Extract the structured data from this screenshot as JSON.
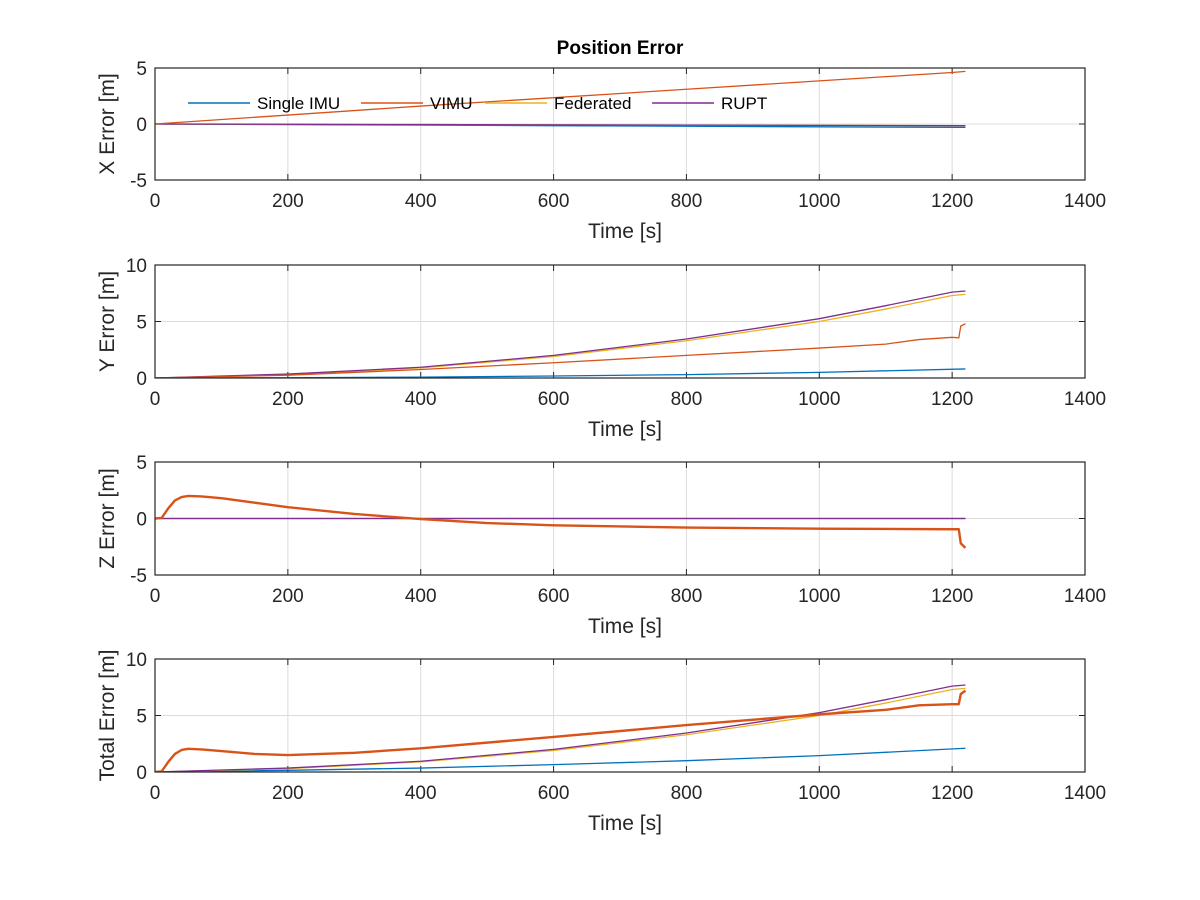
{
  "figure": {
    "title": "Position Error"
  },
  "legend": {
    "placement": "top-left",
    "entries": [
      {
        "name": "Single IMU",
        "color": "#0072BD"
      },
      {
        "name": "VIMU",
        "color": "#D95319"
      },
      {
        "name": "Federated",
        "color": "#EDB120"
      },
      {
        "name": "RUPT",
        "color": "#7E2F8E"
      }
    ]
  },
  "chart_data": [
    {
      "type": "line",
      "title": "Position Error",
      "xlabel": "Time [s]",
      "ylabel": "X Error [m]",
      "xlim": [
        0,
        1400
      ],
      "ylim": [
        -5,
        5
      ],
      "xticks": [
        "0",
        "200",
        "400",
        "600",
        "800",
        "1000",
        "1200",
        "1400"
      ],
      "yticks": [
        "-5",
        "0",
        "5"
      ],
      "grid": true,
      "series": [
        {
          "name": "Single IMU",
          "color": "#0072BD",
          "x": [
            0,
            200,
            400,
            600,
            800,
            1000,
            1220
          ],
          "y": [
            0,
            -0.05,
            -0.1,
            -0.15,
            -0.2,
            -0.25,
            -0.3
          ]
        },
        {
          "name": "VIMU",
          "color": "#D95319",
          "x": [
            0,
            200,
            400,
            600,
            800,
            1000,
            1200,
            1220
          ],
          "y": [
            0,
            0.8,
            1.6,
            2.35,
            3.1,
            3.85,
            4.6,
            4.7
          ]
        },
        {
          "name": "Federated",
          "color": "#EDB120",
          "x": [
            0,
            400,
            800,
            1220
          ],
          "y": [
            0,
            -0.05,
            -0.1,
            -0.15
          ]
        },
        {
          "name": "RUPT",
          "color": "#7E2F8E",
          "x": [
            0,
            400,
            800,
            1220
          ],
          "y": [
            0,
            -0.05,
            -0.1,
            -0.15
          ]
        }
      ]
    },
    {
      "type": "line",
      "xlabel": "Time [s]",
      "ylabel": "Y Error [m]",
      "xlim": [
        0,
        1400
      ],
      "ylim": [
        0,
        10
      ],
      "xticks": [
        "0",
        "200",
        "400",
        "600",
        "800",
        "1000",
        "1200",
        "1400"
      ],
      "yticks": [
        "0",
        "5",
        "10"
      ],
      "grid": true,
      "series": [
        {
          "name": "Single IMU",
          "color": "#0072BD",
          "x": [
            0,
            200,
            400,
            600,
            800,
            1000,
            1220
          ],
          "y": [
            0,
            0.02,
            0.08,
            0.18,
            0.3,
            0.5,
            0.8
          ]
        },
        {
          "name": "VIMU",
          "color": "#D95319",
          "x": [
            0,
            200,
            400,
            600,
            800,
            1000,
            1100,
            1150,
            1200,
            1210,
            1213,
            1220
          ],
          "y": [
            0,
            0.25,
            0.75,
            1.35,
            2.0,
            2.65,
            3.0,
            3.4,
            3.6,
            3.55,
            4.6,
            4.8
          ]
        },
        {
          "name": "Federated",
          "color": "#EDB120",
          "x": [
            0,
            200,
            400,
            600,
            800,
            1000,
            1100,
            1200,
            1220
          ],
          "y": [
            0,
            0.3,
            0.9,
            1.9,
            3.3,
            5.0,
            6.1,
            7.3,
            7.4
          ]
        },
        {
          "name": "RUPT",
          "color": "#7E2F8E",
          "x": [
            0,
            200,
            400,
            600,
            800,
            1000,
            1100,
            1200,
            1220
          ],
          "y": [
            0,
            0.35,
            0.95,
            2.0,
            3.45,
            5.25,
            6.4,
            7.6,
            7.7
          ]
        }
      ]
    },
    {
      "type": "line",
      "xlabel": "Time [s]",
      "ylabel": "Z Error [m]",
      "xlim": [
        0,
        1400
      ],
      "ylim": [
        -5,
        5
      ],
      "xticks": [
        "0",
        "200",
        "400",
        "600",
        "800",
        "1000",
        "1200",
        "1400"
      ],
      "yticks": [
        "-5",
        "0",
        "5"
      ],
      "grid": true,
      "series": [
        {
          "name": "Single IMU",
          "color": "#0072BD",
          "x": [
            0,
            400,
            800,
            1220
          ],
          "y": [
            0,
            0,
            0,
            0
          ]
        },
        {
          "name": "VIMU",
          "color": "#D95319",
          "x": [
            0,
            10,
            20,
            30,
            40,
            50,
            70,
            100,
            150,
            200,
            300,
            400,
            500,
            600,
            800,
            1000,
            1200,
            1210,
            1213,
            1220
          ],
          "y": [
            0,
            0.05,
            0.9,
            1.6,
            1.9,
            2.0,
            1.95,
            1.8,
            1.4,
            1.0,
            0.4,
            -0.05,
            -0.4,
            -0.6,
            -0.8,
            -0.9,
            -0.95,
            -0.95,
            -2.2,
            -2.6
          ]
        },
        {
          "name": "Federated",
          "color": "#EDB120",
          "x": [
            0,
            400,
            800,
            1220
          ],
          "y": [
            0,
            0,
            0,
            0
          ]
        },
        {
          "name": "RUPT",
          "color": "#7E2F8E",
          "x": [
            0,
            400,
            800,
            1220
          ],
          "y": [
            0,
            0,
            0,
            0
          ]
        }
      ]
    },
    {
      "type": "line",
      "xlabel": "Time [s]",
      "ylabel": "Total Error [m]",
      "xlim": [
        0,
        1400
      ],
      "ylim": [
        0,
        10
      ],
      "xticks": [
        "0",
        "200",
        "400",
        "600",
        "800",
        "1000",
        "1200",
        "1400"
      ],
      "yticks": [
        "0",
        "5",
        "10"
      ],
      "grid": true,
      "series": [
        {
          "name": "Single IMU",
          "color": "#0072BD",
          "x": [
            0,
            200,
            400,
            600,
            800,
            1000,
            1220
          ],
          "y": [
            0,
            0.15,
            0.35,
            0.65,
            1.0,
            1.45,
            2.1
          ]
        },
        {
          "name": "VIMU",
          "color": "#D95319",
          "x": [
            0,
            10,
            20,
            30,
            40,
            50,
            70,
            100,
            150,
            200,
            300,
            400,
            600,
            800,
            1000,
            1100,
            1150,
            1200,
            1210,
            1213,
            1220
          ],
          "y": [
            0,
            0.05,
            0.9,
            1.6,
            1.95,
            2.05,
            2.0,
            1.85,
            1.6,
            1.5,
            1.7,
            2.1,
            3.1,
            4.15,
            5.1,
            5.5,
            5.9,
            6.0,
            6.0,
            6.9,
            7.2
          ]
        },
        {
          "name": "Federated",
          "color": "#EDB120",
          "x": [
            0,
            200,
            400,
            600,
            800,
            1000,
            1100,
            1200,
            1220
          ],
          "y": [
            0,
            0.3,
            0.9,
            1.9,
            3.3,
            5.0,
            6.1,
            7.3,
            7.4
          ]
        },
        {
          "name": "RUPT",
          "color": "#7E2F8E",
          "x": [
            0,
            200,
            400,
            600,
            800,
            1000,
            1100,
            1200,
            1220
          ],
          "y": [
            0,
            0.35,
            0.95,
            2.0,
            3.45,
            5.25,
            6.4,
            7.6,
            7.7
          ]
        }
      ]
    }
  ]
}
